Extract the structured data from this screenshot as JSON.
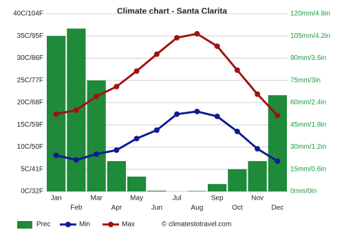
{
  "chart_data": {
    "type": "combo",
    "title": "Climate chart - Santa Clarita",
    "categories": [
      "Jan",
      "Feb",
      "Mar",
      "Apr",
      "May",
      "Jun",
      "Jul",
      "Aug",
      "Sep",
      "Oct",
      "Nov",
      "Dec"
    ],
    "ylim": [
      0,
      40
    ],
    "yticks": [
      {
        "value": 0,
        "label": "0C/32F"
      },
      {
        "value": 5,
        "label": "5C/41F"
      },
      {
        "value": 10,
        "label": "10C/50F"
      },
      {
        "value": 15,
        "label": "15C/59F"
      },
      {
        "value": 20,
        "label": "20C/68F"
      },
      {
        "value": 25,
        "label": "25C/77F"
      },
      {
        "value": 30,
        "label": "30C/86F"
      },
      {
        "value": 35,
        "label": "35C/95F"
      },
      {
        "value": 40,
        "label": "40C/104F"
      }
    ],
    "y2lim": [
      0,
      120
    ],
    "y2ticks": [
      {
        "value": 0,
        "label": "0mm/0in"
      },
      {
        "value": 15,
        "label": "15mm/0.6in"
      },
      {
        "value": 30,
        "label": "30mm/1.2in"
      },
      {
        "value": 45,
        "label": "45mm/1.8in"
      },
      {
        "value": 60,
        "label": "60mm/2.4in"
      },
      {
        "value": 75,
        "label": "75mm/3in"
      },
      {
        "value": 90,
        "label": "90mm/3.6in"
      },
      {
        "value": 105,
        "label": "105mm/4.2in"
      },
      {
        "value": 120,
        "label": "120mm/4.8in"
      }
    ],
    "grid": true,
    "series": [
      {
        "name": "Prec",
        "type": "bar",
        "axis": "y2",
        "color": "#1e8a3a",
        "values": [
          105,
          110,
          75,
          20.5,
          10,
          0.5,
          0,
          0.3,
          5,
          15,
          20.5,
          65
        ]
      },
      {
        "name": "Min",
        "type": "line",
        "color": "#0c1c94",
        "values": [
          8.1,
          7.1,
          8.4,
          9.3,
          11.9,
          13.8,
          17.4,
          18,
          16.9,
          13.5,
          9.6,
          6.8
        ]
      },
      {
        "name": "Max",
        "type": "line",
        "color": "#a01212",
        "values": [
          17.4,
          18.3,
          21.4,
          23.6,
          27.1,
          30.9,
          34.6,
          35.5,
          32.7,
          27.3,
          21.9,
          17.1
        ]
      }
    ],
    "credit": "© climatestotravel.com"
  }
}
